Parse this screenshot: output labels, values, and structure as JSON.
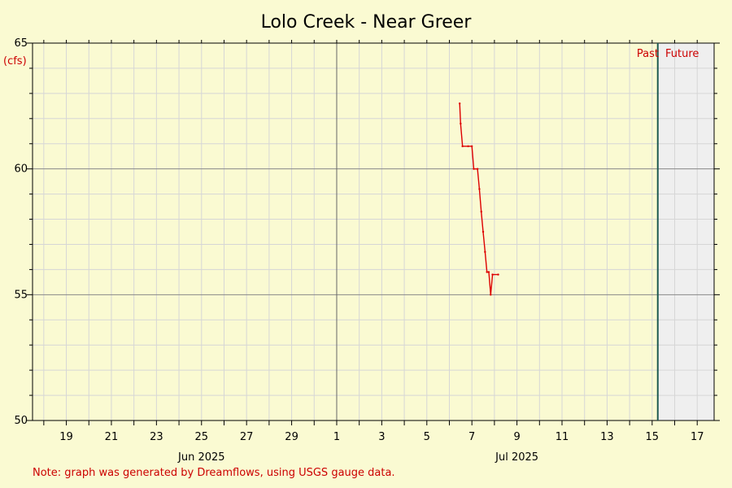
{
  "chart_data": {
    "type": "line",
    "title": "Lolo Creek - Near Greer",
    "ylabel": "(cfs)",
    "xlabel": "",
    "x_range": [
      "2025-06-17T12:00",
      "2025-07-17T18:00"
    ],
    "ylim": [
      50,
      65
    ],
    "y_major_ticks": [
      50,
      55,
      60,
      65
    ],
    "y_minor_step": 1,
    "x_day_tick_labels": [
      {
        "date": "2025-06-19",
        "label": "19"
      },
      {
        "date": "2025-06-21",
        "label": "21"
      },
      {
        "date": "2025-06-23",
        "label": "23"
      },
      {
        "date": "2025-06-25",
        "label": "25"
      },
      {
        "date": "2025-06-27",
        "label": "27"
      },
      {
        "date": "2025-06-29",
        "label": "29"
      },
      {
        "date": "2025-07-01",
        "label": "1"
      },
      {
        "date": "2025-07-03",
        "label": "3"
      },
      {
        "date": "2025-07-05",
        "label": "5"
      },
      {
        "date": "2025-07-07",
        "label": "7"
      },
      {
        "date": "2025-07-09",
        "label": "9"
      },
      {
        "date": "2025-07-11",
        "label": "11"
      },
      {
        "date": "2025-07-13",
        "label": "13"
      },
      {
        "date": "2025-07-15",
        "label": "15"
      },
      {
        "date": "2025-07-17",
        "label": "17"
      }
    ],
    "x_month_labels": [
      {
        "date": "2025-06-25",
        "label": "Jun 2025"
      },
      {
        "date": "2025-07-09",
        "label": "Jul 2025"
      }
    ],
    "month_boundary": "2025-07-01",
    "now_marker": "2025-07-15T06:00",
    "past_label": "Past",
    "future_label": "Future",
    "grid": true,
    "series": [
      {
        "color": "#dd0000",
        "points": [
          [
            "2025-07-06T11:00",
            62.6
          ],
          [
            "2025-07-06T12:00",
            61.8
          ],
          [
            "2025-07-06T14:00",
            60.9
          ],
          [
            "2025-07-06T20:00",
            60.9
          ],
          [
            "2025-07-07T00:00",
            60.9
          ],
          [
            "2025-07-07T02:00",
            60.0
          ],
          [
            "2025-07-07T06:00",
            60.0
          ],
          [
            "2025-07-07T08:00",
            59.2
          ],
          [
            "2025-07-07T10:00",
            58.3
          ],
          [
            "2025-07-07T12:00",
            57.5
          ],
          [
            "2025-07-07T14:00",
            56.7
          ],
          [
            "2025-07-07T16:00",
            55.9
          ],
          [
            "2025-07-07T18:00",
            55.9
          ],
          [
            "2025-07-07T20:00",
            55.0
          ],
          [
            "2025-07-07T22:00",
            55.8
          ],
          [
            "2025-07-08T04:00",
            55.8
          ]
        ]
      }
    ]
  },
  "footer": {
    "note": "Note: graph was generated by Dreamflows, using USGS gauge data."
  }
}
